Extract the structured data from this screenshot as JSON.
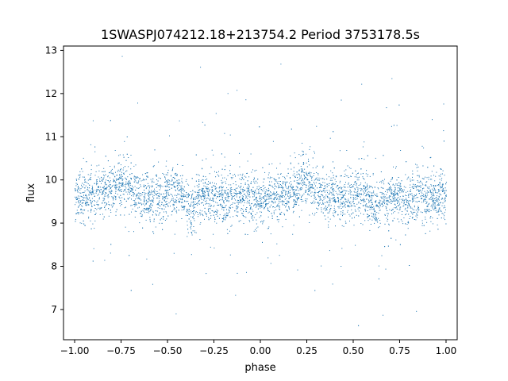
{
  "chart_data": {
    "type": "scatter",
    "title": "1SWASPJ074212.18+213754.2 Period 3753178.5s",
    "xlabel": "phase",
    "ylabel": "flux",
    "xlim": [
      -1.06,
      1.06
    ],
    "ylim": [
      6.3,
      13.1
    ],
    "x_ticks": [
      -1.0,
      -0.75,
      -0.5,
      -0.25,
      0.0,
      0.25,
      0.5,
      0.75,
      1.0
    ],
    "x_tick_labels": [
      "−1.00",
      "−0.75",
      "−0.50",
      "−0.25",
      "0.00",
      "0.25",
      "0.50",
      "0.75",
      "1.00"
    ],
    "y_ticks": [
      7,
      8,
      9,
      10,
      11,
      12,
      13
    ],
    "y_tick_labels": [
      "7",
      "8",
      "9",
      "10",
      "11",
      "12",
      "13"
    ],
    "marker_color": "#1f77b4",
    "grid": false,
    "series": [
      {
        "points_description_note": "",
        "x": [
          -1.0,
          -0.95,
          -0.9,
          -0.85,
          -0.8,
          -0.77,
          -0.75,
          -0.7,
          -0.67,
          -0.65,
          -0.6,
          -0.55,
          -0.5,
          -0.47,
          -0.45,
          -0.4,
          -0.38,
          -0.35,
          -0.3,
          -0.25,
          -0.2,
          -0.15,
          -0.1,
          -0.05,
          0.0,
          0.05,
          0.1,
          0.15,
          0.2,
          0.23,
          0.25,
          0.3,
          0.33,
          0.35,
          0.4,
          0.45,
          0.5,
          0.53,
          0.55,
          0.6,
          0.62,
          0.65,
          0.7,
          0.75,
          0.8,
          0.85,
          0.9,
          0.95,
          1.0
        ],
        "y": [
          9.6,
          9.6,
          9.6,
          9.7,
          9.8,
          9.9,
          10.0,
          9.8,
          9.7,
          9.6,
          9.6,
          9.6,
          9.7,
          9.8,
          9.7,
          9.5,
          9.3,
          9.5,
          9.6,
          9.6,
          9.6,
          9.6,
          9.6,
          9.6,
          9.6,
          9.6,
          9.6,
          9.7,
          9.8,
          9.9,
          10.0,
          9.8,
          9.7,
          9.6,
          9.6,
          9.6,
          9.7,
          9.8,
          9.7,
          9.5,
          9.3,
          9.5,
          9.6,
          9.6,
          9.6,
          9.6,
          9.6,
          9.6,
          9.6
        ]
      }
    ]
  }
}
